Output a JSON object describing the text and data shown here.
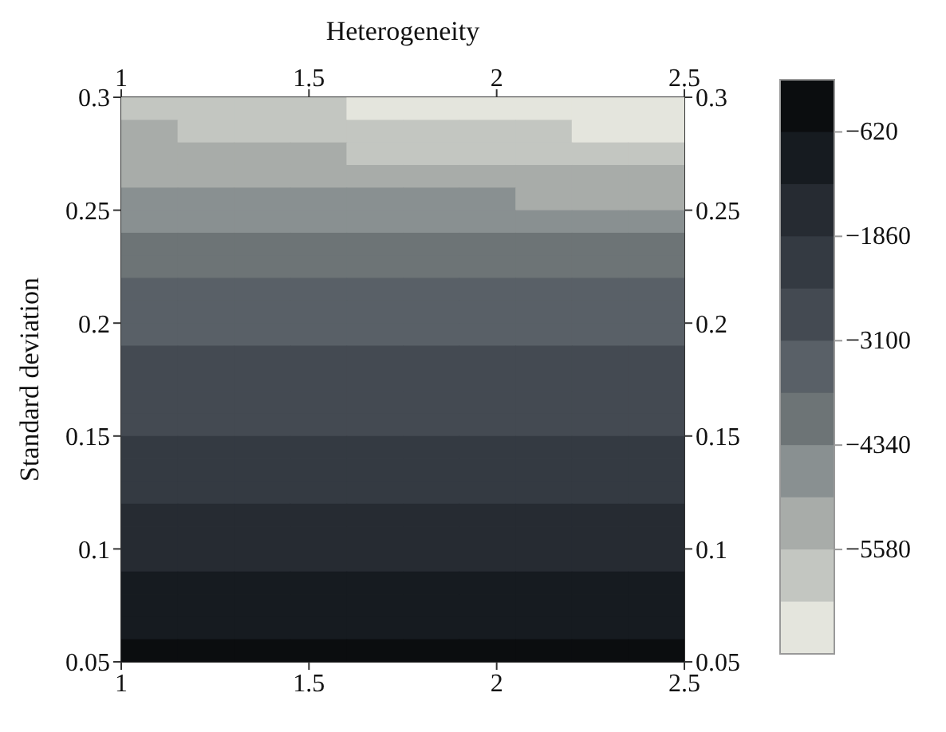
{
  "chart_data": {
    "type": "heatmap",
    "x2label": "Heterogeneity",
    "ylabel": "Standard deviation",
    "x": [
      1.075,
      1.225,
      1.375,
      1.525,
      1.675,
      1.825,
      1.975,
      2.125,
      2.275,
      2.425
    ],
    "y": [
      0.295,
      0.285,
      0.275,
      0.265,
      0.255,
      0.245,
      0.235,
      0.225,
      0.215,
      0.205,
      0.195,
      0.185,
      0.175,
      0.165,
      0.155,
      0.145,
      0.135,
      0.125,
      0.115,
      0.105,
      0.095,
      0.085,
      0.075,
      0.065,
      0.055
    ],
    "xlim": [
      1,
      2.5
    ],
    "xticks": [
      1,
      1.5,
      2,
      2.5
    ],
    "x2lim": [
      1,
      2.5
    ],
    "x2ticks": [
      1,
      1.5,
      2,
      2.5
    ],
    "ylim": [
      0.05,
      0.3
    ],
    "yticks": [
      0.05,
      0.1,
      0.15,
      0.2,
      0.25,
      0.3
    ],
    "y2lim": [
      0.05,
      0.3
    ],
    "y2ticks": [
      0.05,
      0.1,
      0.15,
      0.2,
      0.25,
      0.3
    ],
    "clim": [
      -6820,
      0
    ],
    "cticks": [
      -620,
      -1860,
      -3100,
      -4340,
      -5580
    ],
    "cells": [
      [
        -5890,
        -5890,
        -5890,
        -5890,
        -6510,
        -6510,
        -6510,
        -6510,
        -6510,
        -6510
      ],
      [
        -5270,
        -5890,
        -5890,
        -5890,
        -5890,
        -5890,
        -5890,
        -5890,
        -6510,
        -6510
      ],
      [
        -5270,
        -5270,
        -5270,
        -5270,
        -5890,
        -5890,
        -5890,
        -5890,
        -5890,
        -5890
      ],
      [
        -5270,
        -5270,
        -5270,
        -5270,
        -5270,
        -5270,
        -5270,
        -5270,
        -5270,
        -5270
      ],
      [
        -4650,
        -4650,
        -4650,
        -4650,
        -4650,
        -4650,
        -4650,
        -5270,
        -5270,
        -5270
      ],
      [
        -4650,
        -4650,
        -4650,
        -4650,
        -4650,
        -4650,
        -4650,
        -4650,
        -4650,
        -4650
      ],
      [
        -4030,
        -4030,
        -4030,
        -4030,
        -4030,
        -4030,
        -4030,
        -4030,
        -4030,
        -4030
      ],
      [
        -4030,
        -4030,
        -4030,
        -4030,
        -4030,
        -4030,
        -4030,
        -4030,
        -4030,
        -4030
      ],
      [
        -3410,
        -3410,
        -3410,
        -3410,
        -3410,
        -3410,
        -3410,
        -3410,
        -3410,
        -3410
      ],
      [
        -3410,
        -3410,
        -3410,
        -3410,
        -3410,
        -3410,
        -3410,
        -3410,
        -3410,
        -3410
      ],
      [
        -3410,
        -3410,
        -3410,
        -3410,
        -3410,
        -3410,
        -3410,
        -3410,
        -3410,
        -3410
      ],
      [
        -2790,
        -2790,
        -2790,
        -2790,
        -2790,
        -2790,
        -2790,
        -2790,
        -2790,
        -2790
      ],
      [
        -2790,
        -2790,
        -2790,
        -2790,
        -2790,
        -2790,
        -2790,
        -2790,
        -2790,
        -2790
      ],
      [
        -2790,
        -2790,
        -2790,
        -2790,
        -2790,
        -2790,
        -2790,
        -2790,
        -2790,
        -2790
      ],
      [
        -2790,
        -2790,
        -2790,
        -2790,
        -2790,
        -2790,
        -2790,
        -2790,
        -2790,
        -2790
      ],
      [
        -2170,
        -2170,
        -2170,
        -2170,
        -2170,
        -2170,
        -2170,
        -2170,
        -2170,
        -2170
      ],
      [
        -2170,
        -2170,
        -2170,
        -2170,
        -2170,
        -2170,
        -2170,
        -2170,
        -2170,
        -2170
      ],
      [
        -2170,
        -2170,
        -2170,
        -2170,
        -2170,
        -2170,
        -2170,
        -2170,
        -2170,
        -2170
      ],
      [
        -1550,
        -1550,
        -1550,
        -1550,
        -1550,
        -1550,
        -1550,
        -1550,
        -1550,
        -1550
      ],
      [
        -1550,
        -1550,
        -1550,
        -1550,
        -1550,
        -1550,
        -1550,
        -1550,
        -1550,
        -1550
      ],
      [
        -1550,
        -1550,
        -1550,
        -1550,
        -1550,
        -1550,
        -1550,
        -1550,
        -1550,
        -1550
      ],
      [
        -930,
        -930,
        -930,
        -930,
        -930,
        -930,
        -930,
        -930,
        -930,
        -930
      ],
      [
        -930,
        -930,
        -930,
        -930,
        -930,
        -930,
        -930,
        -930,
        -930,
        -930
      ],
      [
        -930,
        -930,
        -930,
        -930,
        -930,
        -930,
        -930,
        -930,
        -930,
        -930
      ],
      [
        -310,
        -310,
        -310,
        -310,
        -310,
        -310,
        -310,
        -310,
        -310,
        -310
      ]
    ]
  }
}
